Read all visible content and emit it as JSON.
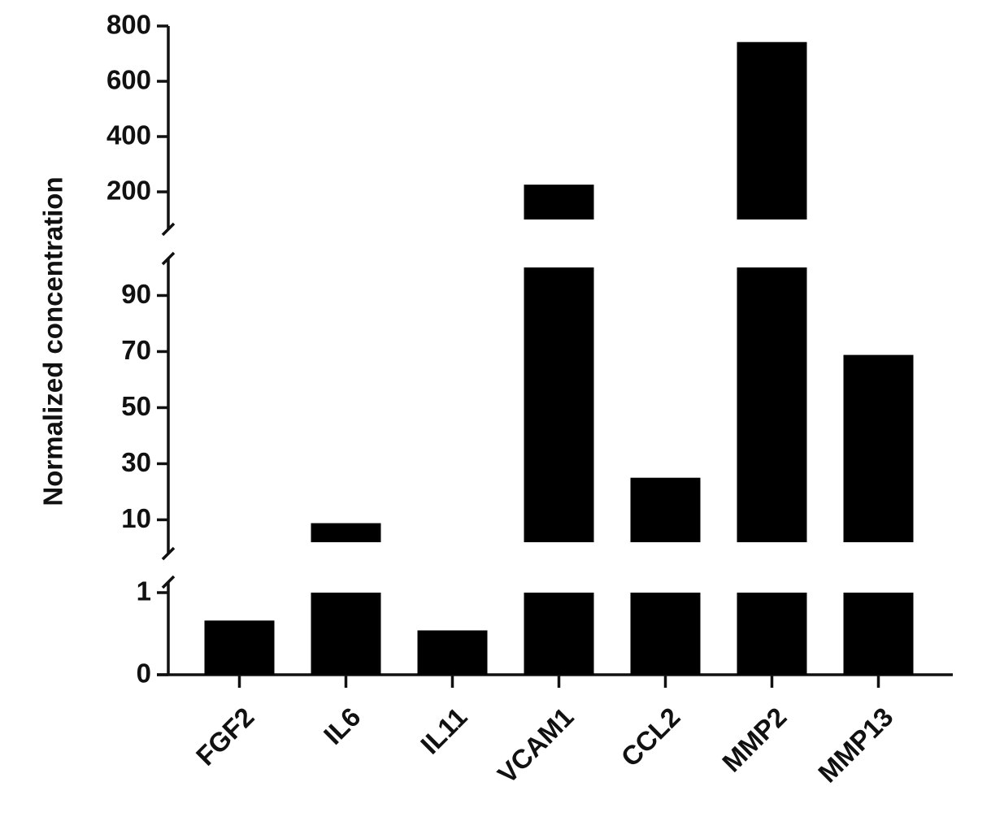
{
  "chart_data": {
    "type": "bar",
    "y_label": "Normalized concentration",
    "categories": [
      "FGF2",
      "IL6",
      "IL11",
      "VCAM1",
      "CCL2",
      "MMP2",
      "MMP13"
    ],
    "values": [
      0.66,
      8.8,
      0.54,
      226,
      25,
      742,
      68.8
    ],
    "color": "#000000",
    "segments": [
      {
        "ylim": [
          0,
          1
        ],
        "yticks": [
          0,
          1
        ]
      },
      {
        "ylim": [
          2,
          100
        ],
        "yticks": [
          10,
          30,
          50,
          70,
          90
        ]
      },
      {
        "ylim": [
          100,
          800
        ],
        "yticks": [
          200,
          400,
          600,
          800
        ]
      }
    ]
  }
}
